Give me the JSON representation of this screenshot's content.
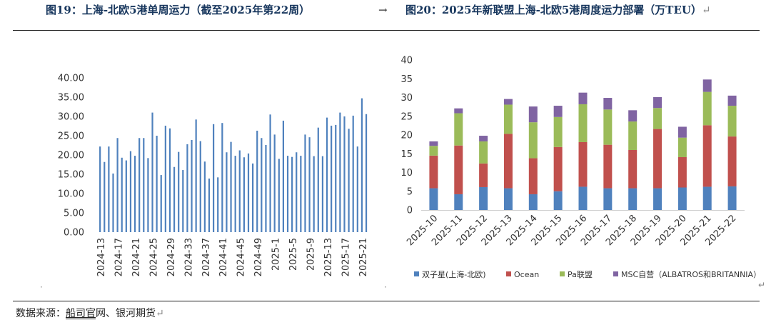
{
  "header": {
    "left_title": "图19：上海-北欧5港单周运力（截至2025年第22周）",
    "arrow": "→",
    "right_title": "图20：2025年新联盟上海-北欧5港周度运力部署（万TEU）",
    "return_mark": "↵"
  },
  "footer": {
    "source_prefix": "数据来源：",
    "source_underlined": "船司官",
    "source_rest": "网、银河期货",
    "return_mark": "↵"
  },
  "chart_data": [
    {
      "type": "bar",
      "title": "上海-北欧5港单周运力（截至2025年第22周）",
      "ylim": [
        0,
        40
      ],
      "yticks": [
        "0.00",
        "5.00",
        "10.00",
        "15.00",
        "20.00",
        "25.00",
        "30.00",
        "35.00",
        "40.00"
      ],
      "color": "#4f81bd",
      "xtick_labels": [
        "2024-13",
        "2024-17",
        "2024-21",
        "2024-25",
        "2024-29",
        "2024-33",
        "2024-37",
        "2024-41",
        "2024-45",
        "2024-49",
        "2025-1",
        "2025-5",
        "2025-9",
        "2025-13",
        "2025-17",
        "2025-21"
      ],
      "values": [
        22.2,
        18.2,
        22.2,
        15.2,
        24.4,
        19.3,
        18.6,
        21.0,
        19.8,
        24.4,
        24.4,
        19.2,
        31.0,
        25.0,
        14.8,
        27.6,
        26.9,
        16.9,
        20.8,
        16.1,
        22.8,
        23.9,
        29.2,
        23.6,
        18.3,
        13.9,
        28.0,
        14.2,
        28.3,
        20.7,
        23.4,
        19.8,
        21.2,
        19.4,
        20.4,
        17.8,
        26.3,
        24.4,
        22.6,
        30.5,
        25.3,
        19.0,
        28.9,
        19.8,
        19.5,
        20.7,
        19.8,
        25.3,
        24.6,
        19.7,
        27.1,
        19.7,
        29.7,
        27.6,
        27.8,
        31.0,
        30.0,
        26.8,
        30.2,
        22.2,
        34.7,
        30.6
      ]
    },
    {
      "type": "bar",
      "stacked": true,
      "title": "2025年新联盟上海-北欧5港周度运力部署（万TEU）",
      "ylim": [
        0,
        40
      ],
      "yticks": [
        "0",
        "5",
        "10",
        "15",
        "20",
        "25",
        "30",
        "35",
        "40"
      ],
      "categories": [
        "2025-10",
        "2025-11",
        "2025-12",
        "2025-13",
        "2025-14",
        "2025-15",
        "2025-16",
        "2025-17",
        "2025-18",
        "2025-19",
        "2025-20",
        "2025-21",
        "2025-22"
      ],
      "series": [
        {
          "name": "双子星(上海-北欧)",
          "color": "#4f81bd",
          "values": [
            5.8,
            4.2,
            6.1,
            5.8,
            4.2,
            5.0,
            6.2,
            5.8,
            5.8,
            5.8,
            6.0,
            6.2,
            6.3
          ]
        },
        {
          "name": "Ocean",
          "color": "#c0504d",
          "values": [
            8.7,
            13.0,
            6.3,
            14.5,
            9.6,
            11.8,
            11.9,
            11.6,
            10.2,
            15.8,
            8.1,
            16.4,
            13.3
          ]
        },
        {
          "name": "Pa联盟",
          "color": "#9bbb59",
          "values": [
            2.6,
            8.6,
            5.9,
            7.8,
            9.6,
            8.0,
            10.1,
            9.4,
            7.6,
            5.6,
            5.2,
            8.9,
            8.2
          ]
        },
        {
          "name": "MSC自营（ALBATROS和BRITANNIA）",
          "color": "#8064a2",
          "values": [
            1.2,
            1.3,
            1.5,
            1.5,
            4.2,
            3.0,
            3.1,
            3.1,
            3.0,
            2.9,
            2.9,
            3.3,
            2.7
          ]
        }
      ]
    }
  ]
}
